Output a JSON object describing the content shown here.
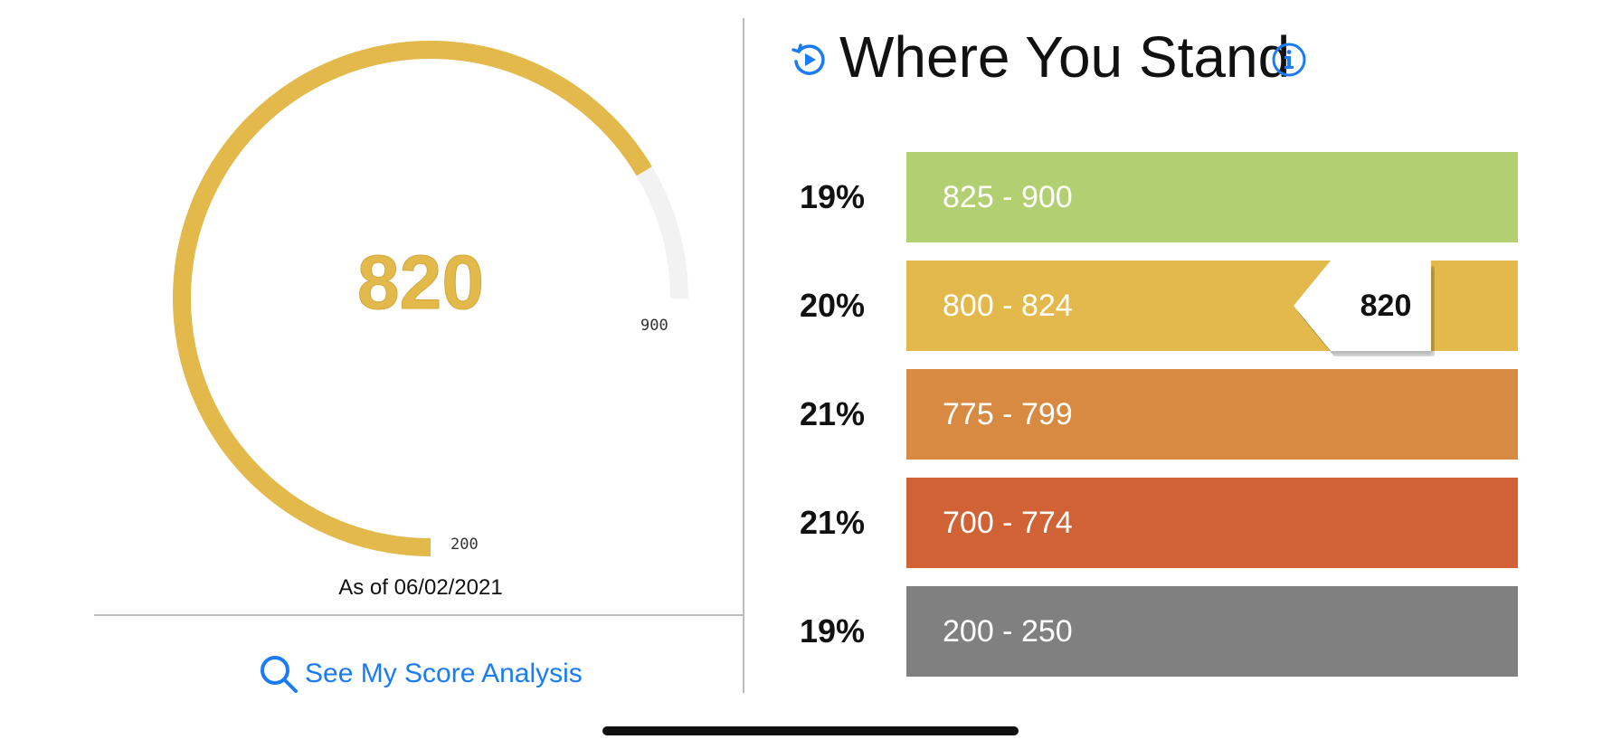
{
  "score_card": {
    "score": "820",
    "score_fraction": 0.886,
    "min_label": "200",
    "max_label": "900",
    "as_of": "As of 06/02/2021",
    "gauge_color": "#E3B94C",
    "track_color": "#F2F2F2",
    "analysis_link": "See My Score Analysis",
    "analysis_icon": "search-icon",
    "link_color": "#1A7CF5"
  },
  "where_you_stand": {
    "title": "Where You Stand",
    "replay_icon": "replay-icon",
    "info_icon": "info-icon",
    "marker_value": "820",
    "ranges": [
      {
        "percent": "19%",
        "label": "825 - 900",
        "color": "#B2D072"
      },
      {
        "percent": "20%",
        "label": "800 - 824",
        "color": "#E3B94C"
      },
      {
        "percent": "21%",
        "label": "775 - 799",
        "color": "#D88A42"
      },
      {
        "percent": "21%",
        "label": "700 - 774",
        "color": "#D06235"
      },
      {
        "percent": "19%",
        "label": "200 - 250",
        "color": "#808080"
      }
    ]
  }
}
